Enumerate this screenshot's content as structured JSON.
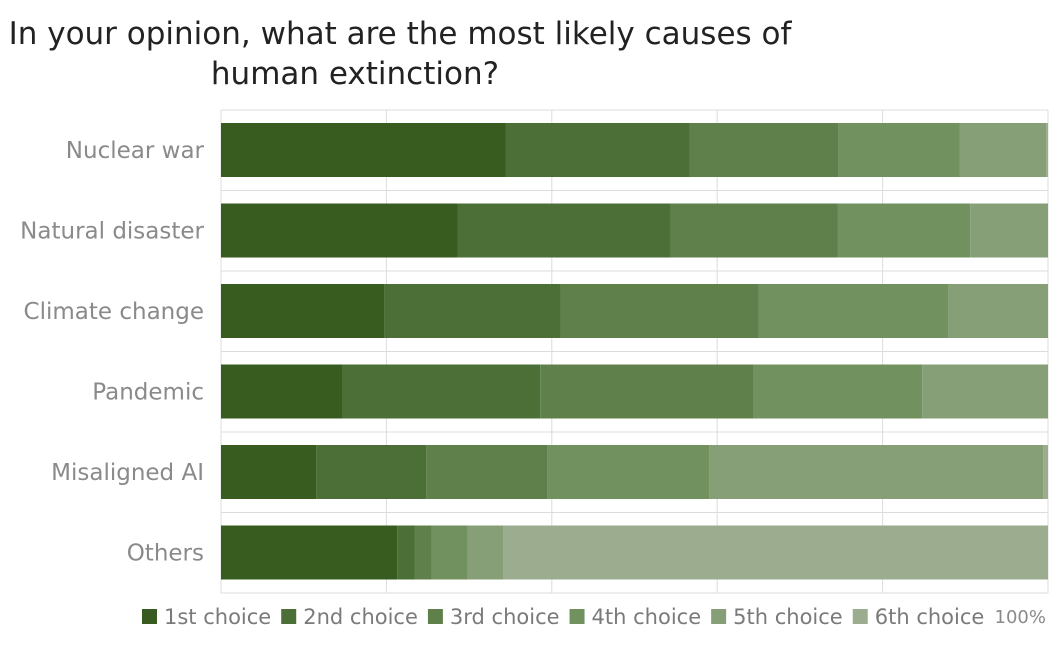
{
  "chart_data": {
    "type": "bar",
    "orientation": "horizontal",
    "stacked": true,
    "title": "In your opinion, what are the most likely causes of human extinction?",
    "title_lines": [
      "In your opinion, what are the most likely causes of",
      "human extinction?"
    ],
    "categories": [
      "Nuclear war",
      "Natural disaster",
      "Climate change",
      "Pandemic",
      "Misaligned AI",
      "Others"
    ],
    "xlim": [
      0,
      100
    ],
    "x_end_label": "100%",
    "grid": true,
    "legend_position": "bottom",
    "series": [
      {
        "name": "1st choice",
        "color": "#385b1f",
        "values": [
          34.4,
          28.6,
          19.8,
          14.7,
          11.5,
          21.3
        ]
      },
      {
        "name": "2nd choice",
        "color": "#4b6f36",
        "values": [
          22.3,
          25.8,
          21.3,
          23.9,
          13.3,
          2.1
        ]
      },
      {
        "name": "3rd choice",
        "color": "#5f804b",
        "values": [
          18.0,
          20.2,
          23.9,
          25.8,
          14.7,
          2.1
        ]
      },
      {
        "name": "4th choice",
        "color": "#71915f",
        "values": [
          14.6,
          16.0,
          23.0,
          20.4,
          19.6,
          4.3
        ]
      },
      {
        "name": "5th choice",
        "color": "#869f77",
        "values": [
          10.5,
          9.4,
          12.0,
          15.2,
          40.3,
          4.3
        ]
      },
      {
        "name": "6th choice",
        "color": "#9cad8f",
        "values": [
          0.2,
          0.0,
          0.0,
          0.0,
          0.6,
          65.9
        ]
      }
    ]
  }
}
